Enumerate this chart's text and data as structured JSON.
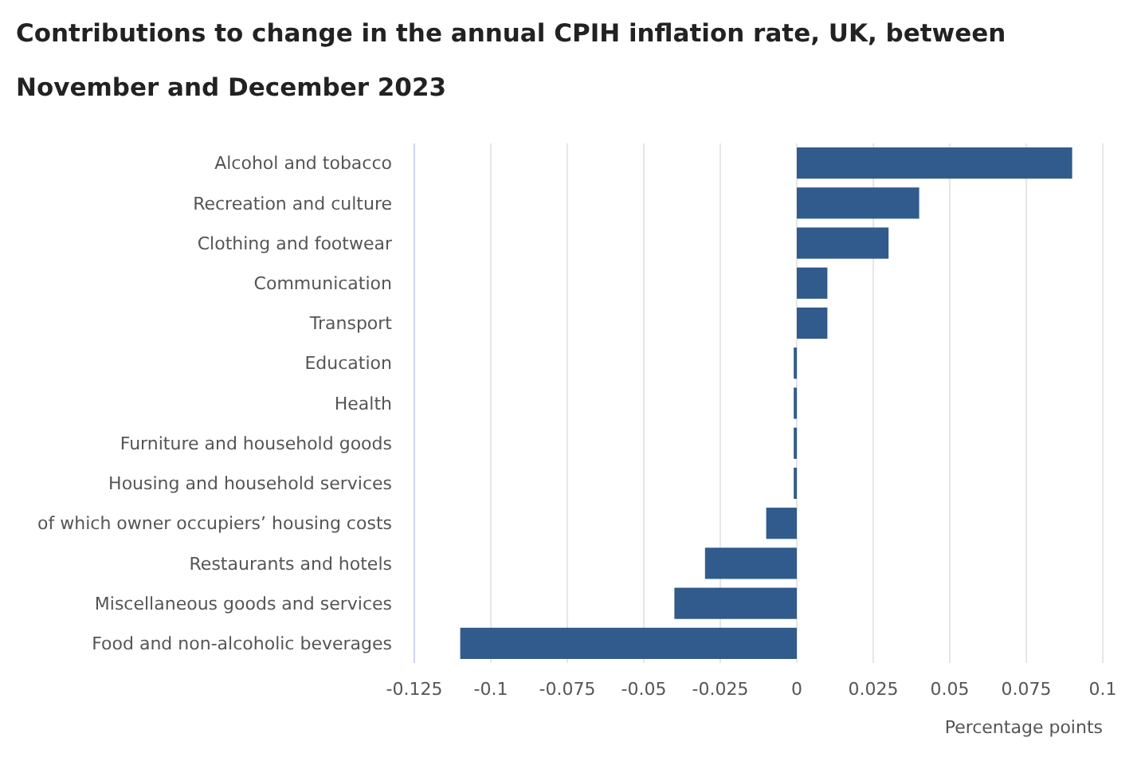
{
  "chart_data": {
    "type": "bar",
    "orientation": "horizontal",
    "title": "Contributions to change in the annual CPIH inflation rate, UK, between November and December 2023",
    "xlabel": "Percentage points",
    "categories": [
      "Alcohol and tobacco",
      "Recreation and culture",
      "Clothing and footwear",
      "Communication",
      "Transport",
      "Education",
      "Health",
      "Furniture and household goods",
      "Housing and household services",
      "of which owner occupiers’ housing costs",
      "Restaurants and hotels",
      "Miscellaneous goods and services",
      "Food and non-alcoholic beverages"
    ],
    "values": [
      0.09,
      0.04,
      0.03,
      0.01,
      0.01,
      -0.001,
      -0.001,
      -0.001,
      -0.001,
      -0.01,
      -0.03,
      -0.04,
      -0.11
    ],
    "color": "#305b8c",
    "xlim": [
      -0.125,
      0.1
    ],
    "xticks": [
      -0.125,
      -0.1,
      -0.075,
      -0.05,
      -0.025,
      0,
      0.025,
      0.05,
      0.075,
      0.1
    ],
    "grid": "x"
  }
}
